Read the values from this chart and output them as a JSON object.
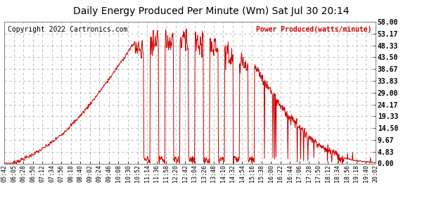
{
  "title": "Daily Energy Produced Per Minute (Wm) Sat Jul 30 20:14",
  "copyright": "Copyright 2022 Cartronics.com",
  "legend_label": "Power Produced(watts/minute)",
  "line_color": "#cc0000",
  "background_color": "#ffffff",
  "grid_color": "#aaaaaa",
  "plot_bg_color": "#ffffff",
  "ylim": [
    0.0,
    58.0
  ],
  "yticks": [
    0.0,
    4.83,
    9.67,
    14.5,
    19.33,
    24.17,
    29.0,
    33.83,
    38.67,
    43.5,
    48.33,
    53.17,
    58.0
  ],
  "ytick_labels": [
    "0.00",
    "4.83",
    "9.67",
    "14.50",
    "19.33",
    "24.17",
    "29.00",
    "33.83",
    "38.67",
    "43.50",
    "48.33",
    "53.17",
    "58.00"
  ],
  "xtick_labels": [
    "05:42",
    "06:05",
    "06:28",
    "06:50",
    "07:12",
    "07:34",
    "07:56",
    "08:18",
    "08:40",
    "09:02",
    "09:24",
    "09:46",
    "10:08",
    "10:30",
    "10:52",
    "11:14",
    "11:36",
    "11:58",
    "12:20",
    "12:42",
    "13:04",
    "13:26",
    "13:48",
    "14:10",
    "14:32",
    "14:54",
    "15:16",
    "15:38",
    "16:00",
    "16:22",
    "16:44",
    "17:06",
    "17:28",
    "17:50",
    "18:12",
    "18:34",
    "18:56",
    "19:18",
    "19:40",
    "20:02"
  ],
  "title_fontsize": 10,
  "copyright_fontsize": 7,
  "legend_fontsize": 7,
  "ytick_fontsize": 7,
  "xtick_fontsize": 6
}
